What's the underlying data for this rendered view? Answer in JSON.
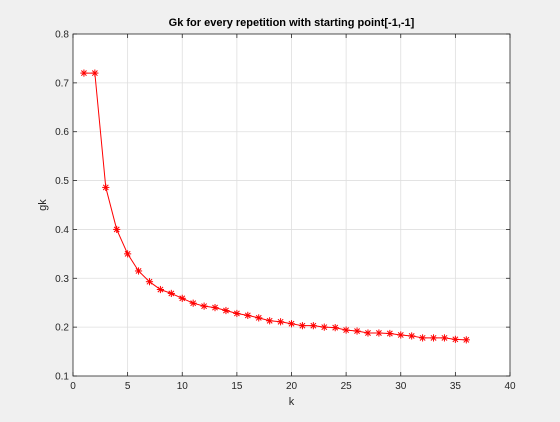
{
  "chart_data": {
    "type": "line",
    "title": "Gk for every repetition with starting point[-1,-1]",
    "xlabel": "k",
    "ylabel": "gk",
    "xlim": [
      0,
      40
    ],
    "ylim": [
      0.1,
      0.8
    ],
    "xticks": [
      0,
      5,
      10,
      15,
      20,
      25,
      30,
      35,
      40
    ],
    "yticks": [
      0.1,
      0.2,
      0.3,
      0.4,
      0.5,
      0.6,
      0.7,
      0.8
    ],
    "grid": true,
    "series_color": "#ff0000",
    "marker": "asterisk",
    "x": [
      1,
      2,
      3,
      4,
      5,
      6,
      7,
      8,
      9,
      10,
      11,
      12,
      13,
      14,
      15,
      16,
      17,
      18,
      19,
      20,
      21,
      22,
      23,
      24,
      25,
      26,
      27,
      28,
      29,
      30,
      31,
      32,
      33,
      34,
      35,
      36
    ],
    "values": [
      0.72,
      0.72,
      0.486,
      0.4,
      0.35,
      0.315,
      0.293,
      0.277,
      0.269,
      0.259,
      0.249,
      0.243,
      0.24,
      0.234,
      0.228,
      0.224,
      0.219,
      0.213,
      0.211,
      0.207,
      0.203,
      0.203,
      0.2,
      0.199,
      0.194,
      0.192,
      0.188,
      0.188,
      0.187,
      0.184,
      0.182,
      0.178,
      0.178,
      0.178,
      0.175,
      0.174
    ]
  }
}
